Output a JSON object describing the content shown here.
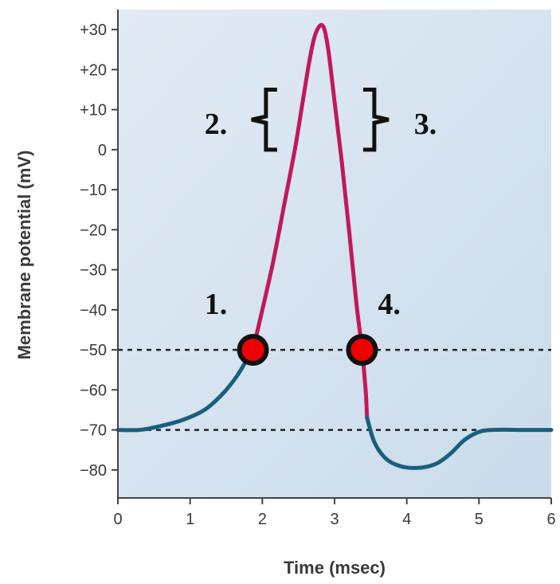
{
  "chart_data": {
    "type": "line",
    "xlabel": "Time (msec)",
    "ylabel": "Membrane potential (mV)",
    "xlim": [
      0,
      6
    ],
    "ylim": [
      -87,
      35
    ],
    "x_ticks": [
      "0",
      "1",
      "2",
      "3",
      "4",
      "5",
      "6"
    ],
    "y_ticks": [
      {
        "value": 30,
        "label": "+30"
      },
      {
        "value": 20,
        "label": "+20"
      },
      {
        "value": 10,
        "label": "+10"
      },
      {
        "value": 0,
        "label": "0"
      },
      {
        "value": -10,
        "label": "−10"
      },
      {
        "value": -20,
        "label": "−20"
      },
      {
        "value": -30,
        "label": "−30"
      },
      {
        "value": -40,
        "label": "−40"
      },
      {
        "value": -50,
        "label": "−50"
      },
      {
        "value": -60,
        "label": "−60"
      },
      {
        "value": -70,
        "label": "−70"
      },
      {
        "value": -80,
        "label": "−80"
      }
    ],
    "grid": false,
    "reference_lines": [
      {
        "y": -50,
        "style": "dotted"
      },
      {
        "y": -70,
        "style": "dotted"
      }
    ],
    "series": [
      {
        "color": "#1b5e7e",
        "points": [
          [
            0,
            -70
          ],
          [
            0.3,
            -70
          ],
          [
            0.6,
            -69
          ],
          [
            0.9,
            -67.5
          ],
          [
            1.2,
            -65
          ],
          [
            1.45,
            -61
          ],
          [
            1.65,
            -56.5
          ],
          [
            1.8,
            -52
          ],
          [
            1.87,
            -50
          ]
        ]
      },
      {
        "color": "#c2185b",
        "points": [
          [
            1.87,
            -50
          ],
          [
            2.0,
            -40
          ],
          [
            2.15,
            -28
          ],
          [
            2.3,
            -14
          ],
          [
            2.45,
            0
          ],
          [
            2.55,
            11
          ],
          [
            2.65,
            22
          ],
          [
            2.72,
            28
          ],
          [
            2.8,
            31
          ],
          [
            2.86,
            30
          ],
          [
            2.92,
            24
          ],
          [
            3.0,
            12
          ],
          [
            3.1,
            -3
          ],
          [
            3.2,
            -20
          ],
          [
            3.3,
            -38
          ],
          [
            3.38,
            -50
          ],
          [
            3.43,
            -60
          ],
          [
            3.45,
            -67
          ]
        ]
      },
      {
        "color": "#1b5e7e",
        "points": [
          [
            3.45,
            -67
          ],
          [
            3.55,
            -73
          ],
          [
            3.7,
            -77
          ],
          [
            3.9,
            -79
          ],
          [
            4.15,
            -79.5
          ],
          [
            4.4,
            -78.5
          ],
          [
            4.6,
            -76
          ],
          [
            4.8,
            -72.5
          ],
          [
            5.0,
            -70.5
          ],
          [
            5.2,
            -70
          ],
          [
            5.6,
            -70
          ],
          [
            6.0,
            -70
          ]
        ]
      }
    ],
    "markers": [
      {
        "x": 1.87,
        "y": -50,
        "color": "#ee0000"
      },
      {
        "x": 3.38,
        "y": -50,
        "color": "#ee0000"
      }
    ],
    "annotations": [
      {
        "id": "1",
        "text": "1.",
        "x": 1.2,
        "y": -41
      },
      {
        "id": "2",
        "text": "2.",
        "x": 1.2,
        "y": 4
      },
      {
        "id": "3",
        "text": "3.",
        "x": 4.1,
        "y": 4
      },
      {
        "id": "4",
        "text": "4.",
        "x": 3.6,
        "y": -41
      }
    ],
    "brackets": [
      {
        "id": "left",
        "x": 2.05,
        "y_top": 15,
        "y_bottom": 0,
        "open": "right"
      },
      {
        "id": "right",
        "x": 3.55,
        "y_top": 15,
        "y_bottom": 0,
        "open": "left"
      }
    ]
  }
}
